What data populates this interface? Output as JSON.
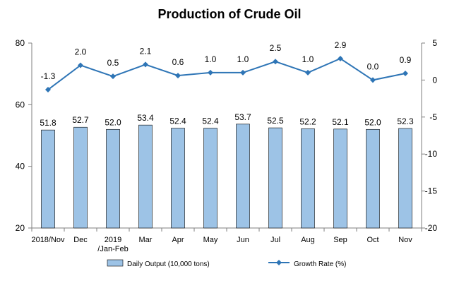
{
  "chart_data": {
    "type": "bar",
    "title": "Production of Crude Oil",
    "categories": [
      "2018/Nov",
      "Dec",
      "2019\n/Jan-Feb",
      "Mar",
      "Apr",
      "May",
      "Jun",
      "Jul",
      "Aug",
      "Sep",
      "Oct",
      "Nov"
    ],
    "series": [
      {
        "name": "Daily Output (10,000 tons)",
        "type": "bar",
        "axis": "left",
        "values": [
          51.8,
          52.7,
          52.0,
          53.4,
          52.4,
          52.4,
          53.7,
          52.5,
          52.2,
          52.1,
          52.0,
          52.3
        ],
        "labels": [
          "51.8",
          "52.7",
          "52.0",
          "53.4",
          "52.4",
          "52.4",
          "53.7",
          "52.5",
          "52.2",
          "52.1",
          "52.0",
          "52.3"
        ]
      },
      {
        "name": "Growth Rate (%)",
        "type": "line",
        "axis": "right",
        "values": [
          -1.3,
          2.0,
          0.5,
          2.1,
          0.6,
          1.0,
          1.0,
          2.5,
          1.0,
          2.9,
          0.0,
          0.9
        ],
        "labels": [
          "-1.3",
          "2.0",
          "0.5",
          "2.1",
          "0.6",
          "1.0",
          "1.0",
          "2.5",
          "1.0",
          "2.9",
          "0.0",
          "0.9"
        ]
      }
    ],
    "y_left": {
      "ylim": [
        20,
        80
      ],
      "ticks": [
        "80",
        "60",
        "40",
        "20"
      ]
    },
    "y_right": {
      "ylim": [
        -20,
        5
      ],
      "ticks": [
        "5",
        "0",
        "-5",
        "-10",
        "-15",
        "-20"
      ]
    },
    "grid": false,
    "legend_position": "bottom",
    "colors": {
      "bar_fill": "#9dc3e6",
      "bar_stroke": "#000000",
      "line": "#2e75b6",
      "axis": "#7f7f7f"
    }
  }
}
